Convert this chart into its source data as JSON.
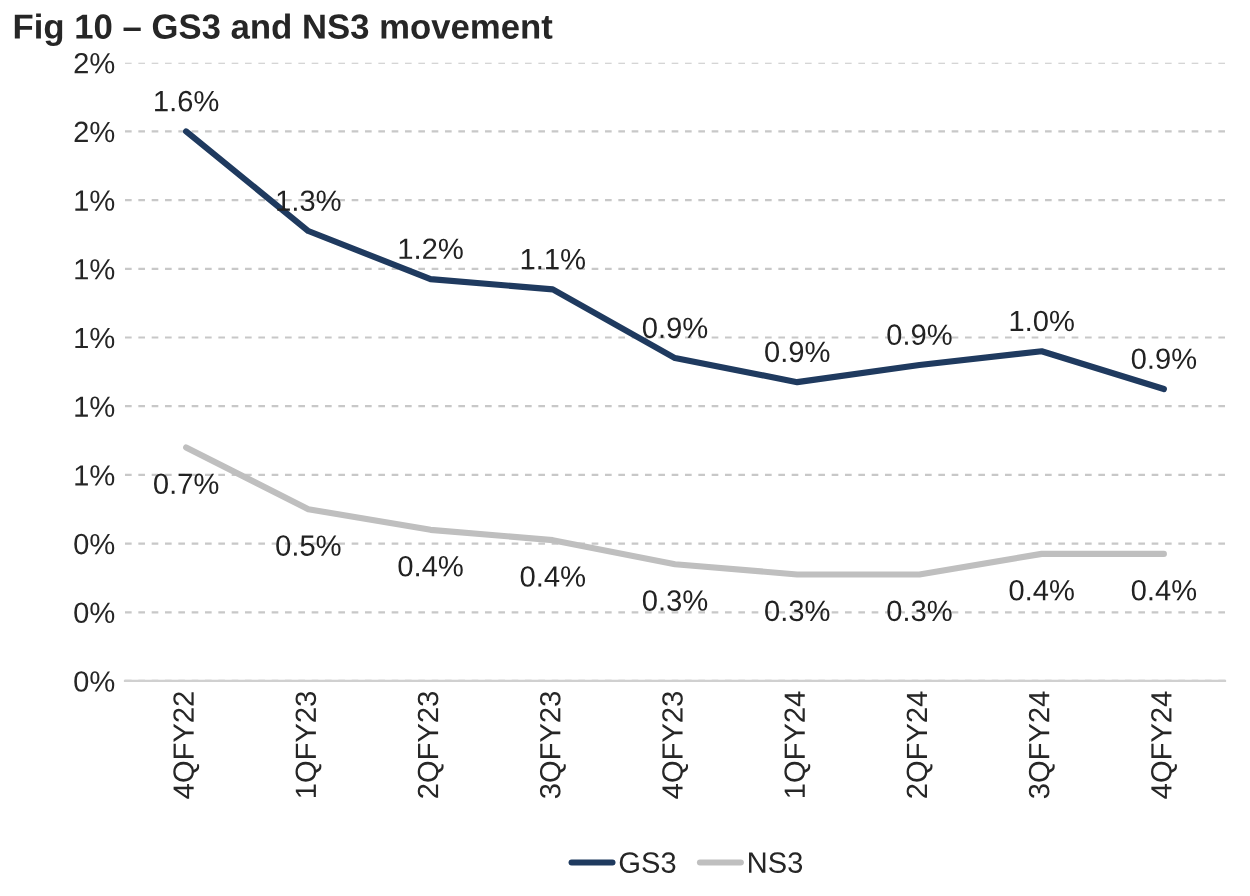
{
  "chart_data": {
    "type": "line",
    "title": "Fig 10 – GS3 and NS3 movement",
    "categories": [
      "4QFY22",
      "1QFY23",
      "2QFY23",
      "3QFY23",
      "4QFY23",
      "1QFY24",
      "2QFY24",
      "3QFY24",
      "4QFY24"
    ],
    "series": [
      {
        "name": "GS3",
        "color": "#1f3a5f",
        "values": [
          1.6,
          1.31,
          1.17,
          1.14,
          0.94,
          0.87,
          0.92,
          0.96,
          0.85
        ],
        "value_labels": [
          "1.6%",
          "1.3%",
          "1.2%",
          "1.1%",
          "0.9%",
          "0.9%",
          "0.9%",
          "1.0%",
          "0.9%"
        ]
      },
      {
        "name": "NS3",
        "color": "#bfbfbf",
        "values": [
          0.68,
          0.5,
          0.44,
          0.41,
          0.34,
          0.31,
          0.31,
          0.37,
          0.37
        ],
        "value_labels": [
          "0.7%",
          "0.5%",
          "0.4%",
          "0.4%",
          "0.3%",
          "0.3%",
          "0.3%",
          "0.4%",
          "0.4%"
        ]
      }
    ],
    "ylim": [
      0,
      1.8
    ],
    "yticks": [
      {
        "value": 0,
        "label": "0%"
      },
      {
        "value": 0.2,
        "label": "0%"
      },
      {
        "value": 0.4,
        "label": "0%"
      },
      {
        "value": 0.6,
        "label": "1%"
      },
      {
        "value": 0.8,
        "label": "1%"
      },
      {
        "value": 1.0,
        "label": "1%"
      },
      {
        "value": 1.2,
        "label": "1%"
      },
      {
        "value": 1.4,
        "label": "1%"
      },
      {
        "value": 1.6,
        "label": "2%"
      },
      {
        "value": 1.8,
        "label": "2%"
      }
    ],
    "grid": "y",
    "legend": "bottom",
    "marker": "none",
    "line_style": "solid"
  }
}
